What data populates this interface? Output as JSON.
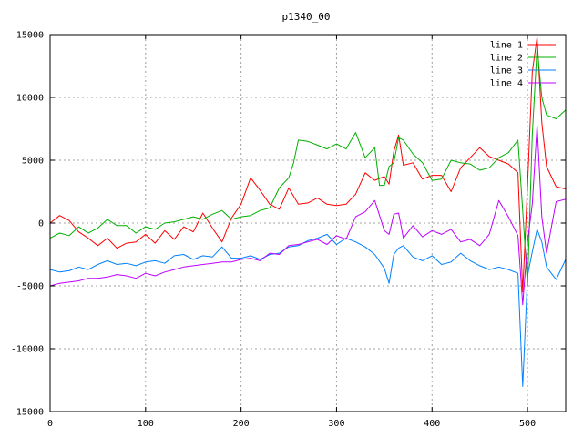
{
  "chart_data": {
    "type": "line",
    "title": "p1340_00",
    "xlabel": "",
    "ylabel": "",
    "xlim": [
      0,
      540
    ],
    "ylim": [
      -15000,
      15000
    ],
    "xticks": [
      0,
      100,
      200,
      300,
      400,
      500
    ],
    "yticks": [
      -15000,
      -10000,
      -5000,
      0,
      5000,
      10000,
      15000
    ],
    "grid": true,
    "legend_position": "top-right",
    "series": [
      {
        "name": "line 1",
        "color": "#ff0000",
        "x": [
          0,
          10,
          20,
          30,
          40,
          50,
          60,
          70,
          80,
          90,
          100,
          110,
          120,
          130,
          140,
          150,
          160,
          170,
          180,
          190,
          200,
          210,
          220,
          230,
          240,
          250,
          260,
          270,
          280,
          290,
          300,
          310,
          320,
          330,
          340,
          350,
          355,
          360,
          365,
          370,
          380,
          390,
          400,
          410,
          420,
          430,
          440,
          450,
          460,
          470,
          480,
          490,
          495,
          500,
          505,
          510,
          515,
          520,
          530,
          540
        ],
        "y": [
          0,
          600,
          200,
          -700,
          -1200,
          -1800,
          -1200,
          -2000,
          -1600,
          -1500,
          -900,
          -1600,
          -600,
          -1300,
          -300,
          -700,
          800,
          -400,
          -1500,
          400,
          1500,
          3600,
          2600,
          1500,
          1100,
          2800,
          1500,
          1600,
          2000,
          1500,
          1400,
          1500,
          2300,
          4000,
          3400,
          3700,
          3100,
          5700,
          7000,
          4600,
          4800,
          3500,
          3800,
          3800,
          2500,
          4400,
          5200,
          6000,
          5300,
          5000,
          4700,
          4000,
          -5500,
          3000,
          12000,
          14800,
          8000,
          4500,
          2900,
          2700
        ]
      },
      {
        "name": "line 2",
        "color": "#00b000",
        "x": [
          0,
          10,
          20,
          30,
          40,
          50,
          60,
          70,
          80,
          90,
          100,
          110,
          120,
          130,
          140,
          150,
          160,
          170,
          180,
          190,
          200,
          210,
          220,
          230,
          240,
          250,
          255,
          260,
          270,
          280,
          290,
          300,
          310,
          320,
          330,
          340,
          345,
          350,
          355,
          360,
          365,
          370,
          380,
          390,
          400,
          410,
          420,
          430,
          440,
          450,
          460,
          470,
          480,
          490,
          495,
          500,
          505,
          510,
          515,
          520,
          530,
          540
        ],
        "y": [
          -1200,
          -800,
          -1000,
          -300,
          -800,
          -400,
          300,
          -200,
          -200,
          -800,
          -300,
          -500,
          0,
          100,
          300,
          500,
          300,
          700,
          1000,
          300,
          500,
          600,
          1000,
          1200,
          2800,
          3600,
          4800,
          6600,
          6500,
          6200,
          5900,
          6300,
          5900,
          7200,
          5200,
          6000,
          3000,
          3000,
          4500,
          4800,
          6800,
          6600,
          5500,
          4800,
          3400,
          3500,
          5000,
          4800,
          4700,
          4200,
          4400,
          5200,
          5600,
          6600,
          1000,
          -5000,
          7000,
          14000,
          10000,
          8600,
          8300,
          9000
        ]
      },
      {
        "name": "line 3",
        "color": "#0080ff",
        "x": [
          0,
          10,
          20,
          30,
          40,
          50,
          60,
          70,
          80,
          90,
          100,
          110,
          120,
          130,
          140,
          150,
          160,
          170,
          180,
          190,
          200,
          210,
          220,
          230,
          240,
          250,
          260,
          270,
          280,
          290,
          300,
          310,
          320,
          330,
          340,
          350,
          355,
          360,
          365,
          370,
          380,
          390,
          400,
          410,
          420,
          430,
          440,
          450,
          460,
          470,
          480,
          490,
          495,
          500,
          505,
          510,
          515,
          520,
          530,
          540
        ],
        "y": [
          -3700,
          -3900,
          -3800,
          -3500,
          -3700,
          -3300,
          -3000,
          -3300,
          -3200,
          -3400,
          -3100,
          -3000,
          -3200,
          -2600,
          -2500,
          -2900,
          -2600,
          -2700,
          -1900,
          -2800,
          -2800,
          -2600,
          -2900,
          -2500,
          -2400,
          -1900,
          -1800,
          -1400,
          -1200,
          -900,
          -1700,
          -1200,
          -1500,
          -1900,
          -2500,
          -3600,
          -4800,
          -2500,
          -2000,
          -1800,
          -2700,
          -3000,
          -2600,
          -3300,
          -3100,
          -2400,
          -3000,
          -3400,
          -3700,
          -3500,
          -3700,
          -4000,
          -13000,
          -4200,
          -2300,
          -500,
          -1500,
          -3500,
          -4500,
          -2900
        ]
      },
      {
        "name": "line 4",
        "color": "#c000ff",
        "x": [
          0,
          10,
          20,
          30,
          40,
          50,
          60,
          70,
          80,
          90,
          100,
          110,
          120,
          130,
          140,
          150,
          160,
          170,
          180,
          190,
          200,
          210,
          220,
          230,
          240,
          250,
          260,
          270,
          280,
          290,
          300,
          310,
          320,
          330,
          340,
          350,
          355,
          360,
          365,
          370,
          380,
          390,
          400,
          410,
          420,
          430,
          440,
          450,
          460,
          470,
          480,
          490,
          495,
          500,
          505,
          510,
          515,
          520,
          530,
          540
        ],
        "y": [
          -5000,
          -4800,
          -4700,
          -4600,
          -4400,
          -4400,
          -4300,
          -4100,
          -4200,
          -4400,
          -4000,
          -4200,
          -3900,
          -3700,
          -3500,
          -3400,
          -3300,
          -3200,
          -3100,
          -3100,
          -2900,
          -2800,
          -3000,
          -2400,
          -2500,
          -1800,
          -1700,
          -1500,
          -1300,
          -1700,
          -1000,
          -1300,
          500,
          900,
          1800,
          -600,
          -900,
          700,
          800,
          -1200,
          -200,
          -1100,
          -600,
          -900,
          -500,
          -1500,
          -1300,
          -1800,
          -900,
          1800,
          500,
          -1000,
          -6500,
          -1500,
          1500,
          7800,
          500,
          -2400,
          1700,
          1900
        ]
      }
    ]
  }
}
